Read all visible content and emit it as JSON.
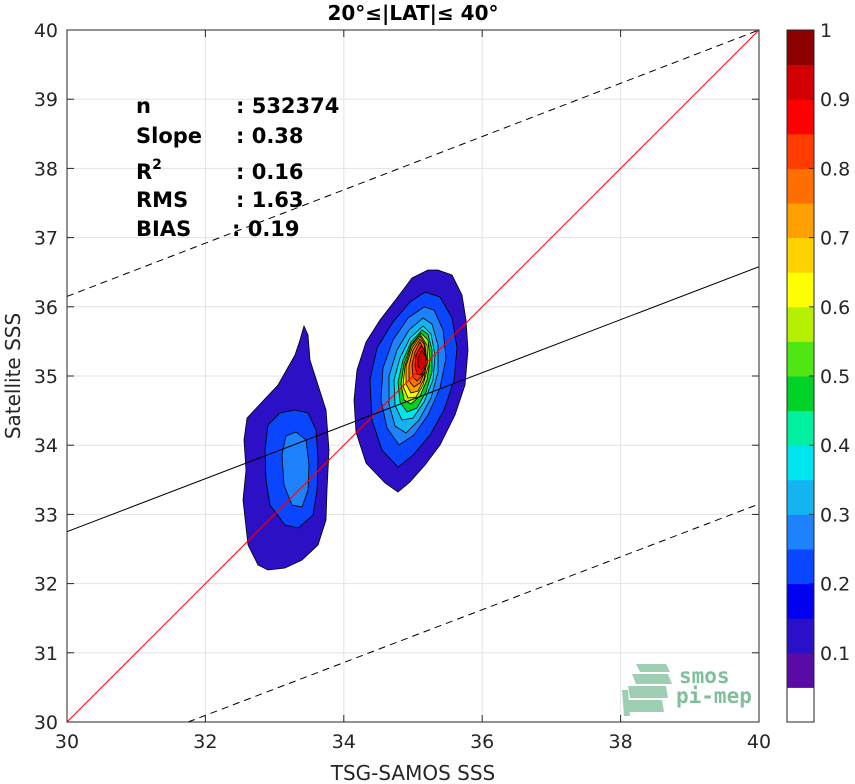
{
  "chart_data": {
    "type": "contour",
    "title": "20°≤|LAT|≤ 40°",
    "xlabel": "TSG-SAMOS SSS",
    "ylabel": "Satellite SSS",
    "xlim": [
      30,
      40
    ],
    "ylim": [
      30,
      40
    ],
    "xticks": [
      "30",
      "32",
      "34",
      "36",
      "38",
      "40"
    ],
    "yticks": [
      "30",
      "31",
      "32",
      "33",
      "34",
      "35",
      "36",
      "37",
      "38",
      "39",
      "40"
    ],
    "grid": true,
    "stats": [
      {
        "label": "n",
        "value": ": 532374"
      },
      {
        "label": "Slope",
        "value": ": 0.38"
      },
      {
        "label": "R",
        "sup": "2",
        "value": ": 0.16"
      },
      {
        "label": "RMS",
        "value": ": 1.63"
      },
      {
        "label": "BIAS",
        "value": ": 0.19"
      }
    ],
    "lines": {
      "identity": {
        "color": "#ff0000",
        "points": [
          [
            30,
            30
          ],
          [
            40,
            40
          ]
        ]
      },
      "regression": {
        "color": "#000000",
        "points": [
          [
            30,
            32.75
          ],
          [
            40,
            36.58
          ]
        ]
      },
      "upper_bound": {
        "color": "#000000",
        "dashed": true,
        "points": [
          [
            30,
            36.15
          ],
          [
            40,
            40.0
          ]
        ]
      },
      "lower_bound": {
        "color": "#000000",
        "dashed": true,
        "points": [
          [
            31.75,
            30
          ],
          [
            40,
            33.15
          ]
        ]
      }
    },
    "density_clusters": [
      {
        "name": "cluster-left",
        "center": [
          33.25,
          33.9
        ],
        "peak_level": 0.3
      },
      {
        "name": "cluster-right",
        "center": [
          35.1,
          35.15
        ],
        "peak_level": 1.0
      }
    ],
    "colorbar": {
      "min": 0,
      "max": 1,
      "ticks": [
        "0.1",
        "0.2",
        "0.3",
        "0.4",
        "0.5",
        "0.6",
        "0.7",
        "0.8",
        "0.9",
        "1"
      ],
      "colors": [
        "#ffffff",
        "#5a0aa5",
        "#2a10c8",
        "#0000f0",
        "#0a46ff",
        "#1e82ff",
        "#14b4f0",
        "#00e6f0",
        "#00f0a0",
        "#00d228",
        "#50e614",
        "#b4f000",
        "#ffff00",
        "#ffd200",
        "#ffa000",
        "#ff6e00",
        "#ff3c00",
        "#ff0000",
        "#d20000",
        "#8c0000"
      ]
    }
  },
  "logo": {
    "line1": "smos",
    "line2": "pi-mep"
  }
}
